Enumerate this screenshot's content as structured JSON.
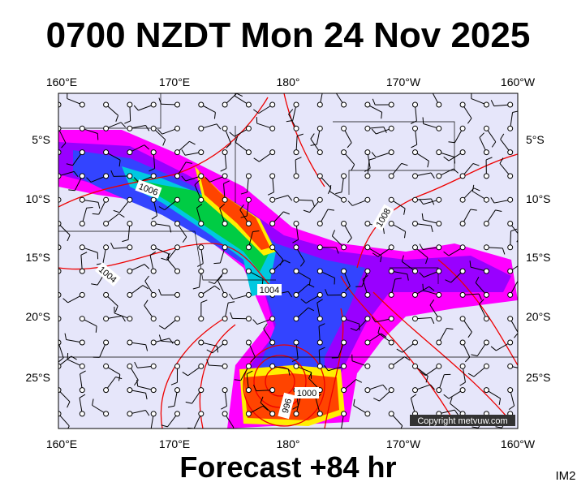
{
  "header": {
    "title": "0700 NZDT Mon 24 Nov 2025"
  },
  "axes": {
    "top_lon_labels": [
      "160°E",
      "170°E",
      "180°",
      "170°W",
      "160°W"
    ],
    "bottom_lon_labels": [
      "160°E",
      "170°E",
      "180°",
      "170°W",
      "160°W"
    ],
    "left_lat_labels": [
      "5°S",
      "10°S",
      "15°S",
      "20°S",
      "25°S"
    ],
    "right_lat_labels": [
      "5°S",
      "10°S",
      "15°S",
      "20°S",
      "25°S"
    ]
  },
  "isobar_labels": [
    "1006",
    "1004",
    "1008",
    "1004",
    "1000",
    "996"
  ],
  "copyright": "Copyright metvuw.com",
  "footer": "Forecast +84 hr",
  "image_id": "IM2"
}
